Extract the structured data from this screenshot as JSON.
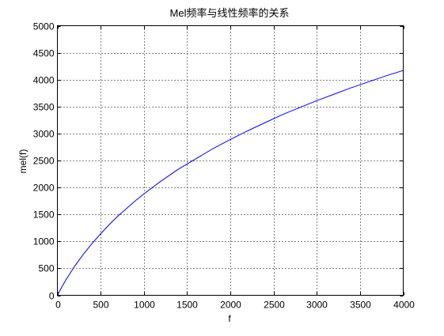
{
  "chart_data": {
    "type": "line",
    "title": "Mel频率与线性频率的关系",
    "xlabel": "f",
    "ylabel": "mel(f)",
    "xlim": [
      0,
      4000
    ],
    "ylim": [
      0,
      5000
    ],
    "xticks": [
      0,
      500,
      1000,
      1500,
      2000,
      2500,
      3000,
      3500,
      4000
    ],
    "yticks": [
      0,
      500,
      1000,
      1500,
      2000,
      2500,
      3000,
      3500,
      4000,
      4500,
      5000
    ],
    "grid": true,
    "grid_style": "dotted",
    "series": [
      {
        "color": "#0000ff",
        "x": [
          0,
          50,
          100,
          200,
          300,
          400,
          500,
          600,
          700,
          800,
          900,
          1000,
          1200,
          1400,
          1600,
          1800,
          2000,
          2200,
          2400,
          2600,
          2800,
          3000,
          3200,
          3400,
          3600,
          3800,
          4000
        ],
        "values": [
          0,
          150,
          290,
          540,
          760,
          960,
          1140,
          1310,
          1470,
          1610,
          1750,
          1880,
          2120,
          2340,
          2530,
          2720,
          2890,
          3050,
          3200,
          3350,
          3480,
          3610,
          3730,
          3850,
          3960,
          4070,
          4170
        ]
      }
    ]
  }
}
